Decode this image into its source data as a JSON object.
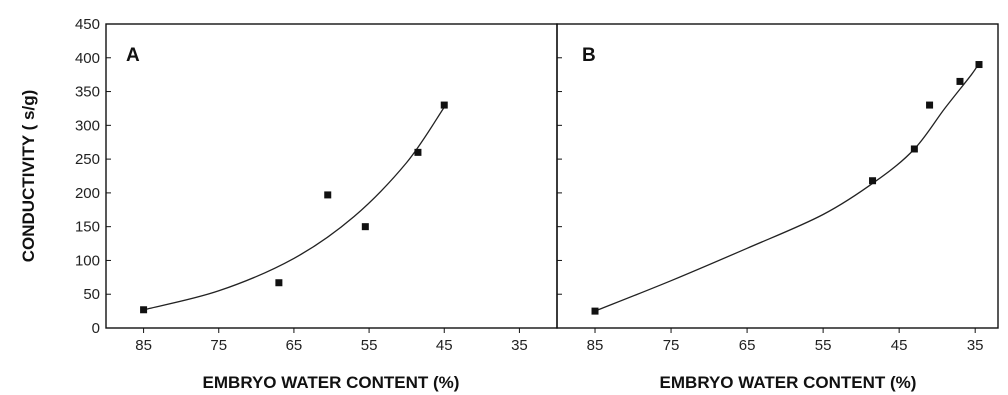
{
  "chart_data": [
    {
      "type": "scatter",
      "panel_label": "A",
      "ylabel": "CONDUCTIVITY (  s/g)",
      "xlabel": "EMBRYO WATER CONTENT (%)",
      "x_axis_reversed": true,
      "xlim": [
        90,
        30
      ],
      "ylim": [
        0,
        450
      ],
      "xticks": [
        85,
        75,
        65,
        55,
        45,
        35
      ],
      "yticks": [
        0,
        50,
        100,
        150,
        200,
        250,
        300,
        350,
        400,
        450
      ],
      "points": [
        {
          "x": 85,
          "y": 27
        },
        {
          "x": 67,
          "y": 67
        },
        {
          "x": 60.5,
          "y": 197
        },
        {
          "x": 55.5,
          "y": 150
        },
        {
          "x": 48.5,
          "y": 260
        },
        {
          "x": 45,
          "y": 330
        }
      ],
      "fit_curve": [
        {
          "x": 85,
          "y": 27
        },
        {
          "x": 75,
          "y": 55
        },
        {
          "x": 65,
          "y": 103
        },
        {
          "x": 57,
          "y": 165
        },
        {
          "x": 50,
          "y": 245
        },
        {
          "x": 45,
          "y": 327
        }
      ]
    },
    {
      "type": "scatter",
      "panel_label": "B",
      "xlabel": "EMBRYO WATER CONTENT (%)",
      "x_axis_reversed": true,
      "xlim": [
        90,
        32
      ],
      "ylim": [
        0,
        450
      ],
      "xticks": [
        85,
        75,
        65,
        55,
        45,
        35
      ],
      "yticks": [
        0,
        50,
        100,
        150,
        200,
        250,
        300,
        350,
        400,
        450
      ],
      "points": [
        {
          "x": 85,
          "y": 25
        },
        {
          "x": 48.5,
          "y": 218
        },
        {
          "x": 43,
          "y": 265
        },
        {
          "x": 41,
          "y": 330
        },
        {
          "x": 37,
          "y": 365
        },
        {
          "x": 34.5,
          "y": 390
        }
      ],
      "fit_curve": [
        {
          "x": 85,
          "y": 25
        },
        {
          "x": 75,
          "y": 70
        },
        {
          "x": 65,
          "y": 118
        },
        {
          "x": 55,
          "y": 168
        },
        {
          "x": 48,
          "y": 218
        },
        {
          "x": 43,
          "y": 265
        },
        {
          "x": 39,
          "y": 325
        },
        {
          "x": 35.5,
          "y": 375
        },
        {
          "x": 34.5,
          "y": 392
        }
      ]
    }
  ]
}
